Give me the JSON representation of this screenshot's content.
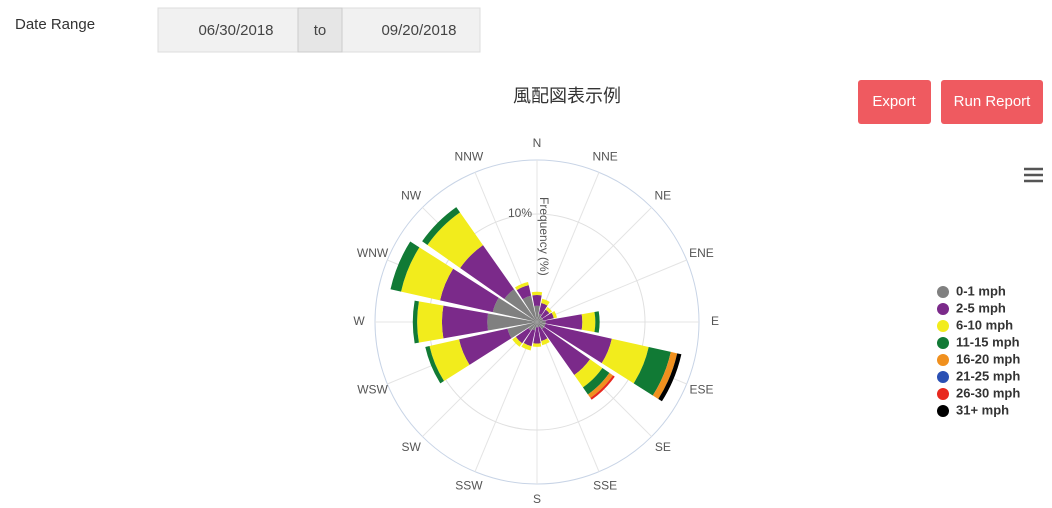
{
  "form": {
    "label": "Date Range",
    "start": "06/30/2018",
    "separator": "to",
    "end": "09/20/2018"
  },
  "buttons": [
    "Export",
    "Run Report"
  ],
  "chart_data": {
    "type": "windrose",
    "title": "風配図表示例",
    "radial_axis_label": "Frequency (%)",
    "categories": [
      "N",
      "NNE",
      "NE",
      "ENE",
      "E",
      "ESE",
      "SE",
      "SSE",
      "S",
      "SSW",
      "SW",
      "WSW",
      "W",
      "WNW",
      "NW",
      "NNW"
    ],
    "ylim": [
      0,
      15
    ],
    "yticks": [
      {
        "value": 10,
        "label": "10%"
      }
    ],
    "grid": true,
    "legend": "right",
    "series": [
      {
        "name": "0-1 mph",
        "color": "#808080",
        "values": [
          1.5,
          0.8,
          0.6,
          0.6,
          0.8,
          0.8,
          0.8,
          0.5,
          0.5,
          0.8,
          1,
          2.8,
          4.6,
          4.2,
          3.7,
          2.5
        ]
      },
      {
        "name": "2-5 mph",
        "color": "#7b2a8a",
        "values": [
          1,
          1,
          0.8,
          1,
          3.4,
          6.3,
          5.2,
          1.3,
          1.5,
          1.5,
          1.4,
          4.6,
          4.2,
          5,
          5,
          1
        ]
      },
      {
        "name": "6-10 mph",
        "color": "#f2ec1c",
        "values": [
          0.3,
          0.4,
          0.3,
          0.3,
          1.2,
          3.5,
          1.4,
          0.4,
          0.3,
          0.4,
          0.4,
          2.8,
          2.3,
          3.7,
          3.7,
          0.3
        ]
      },
      {
        "name": "11-15 mph",
        "color": "#117a35",
        "values": [
          0,
          0,
          0,
          0,
          0.4,
          2.1,
          0.8,
          0,
          0,
          0,
          0,
          0.4,
          0.4,
          1,
          0.6,
          0
        ]
      },
      {
        "name": "16-20 mph",
        "color": "#f0901e",
        "values": [
          0,
          0,
          0,
          0,
          0,
          0.6,
          0.4,
          0,
          0,
          0,
          0,
          0,
          0,
          0,
          0,
          0
        ]
      },
      {
        "name": "21-25 mph",
        "color": "#2a50b4",
        "values": [
          0,
          0,
          0,
          0,
          0,
          0,
          0,
          0,
          0,
          0,
          0,
          0,
          0,
          0,
          0,
          0
        ]
      },
      {
        "name": "26-30 mph",
        "color": "#e8281e",
        "values": [
          0,
          0,
          0,
          0,
          0,
          0,
          0.2,
          0,
          0,
          0,
          0,
          0,
          0,
          0,
          0,
          0
        ]
      },
      {
        "name": "31+ mph",
        "color": "#000000",
        "values": [
          0,
          0,
          0,
          0,
          0,
          0.4,
          0,
          0,
          0,
          0,
          0,
          0,
          0,
          0,
          0,
          0
        ]
      }
    ]
  }
}
